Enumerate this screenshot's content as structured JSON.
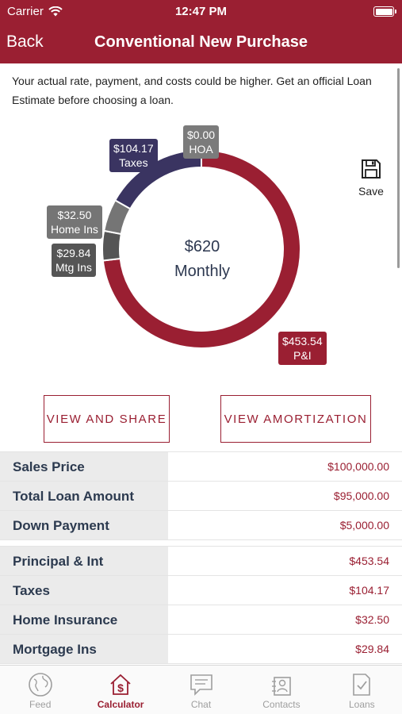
{
  "status_bar": {
    "carrier": "Carrier",
    "time": "12:47 PM"
  },
  "nav": {
    "back_label": "Back",
    "title": "Conventional New Purchase"
  },
  "disclaimer": "Your actual rate, payment, and costs could be higher. Get an official Loan Estimate before choosing a loan.",
  "chart_data": {
    "type": "pie",
    "variant": "donut",
    "center_amount": "$620",
    "center_label": "Monthly",
    "slices": [
      {
        "name": "P&I",
        "value": 453.54,
        "label": "$453.54",
        "color": "#9a1f32"
      },
      {
        "name": "Mtg Ins",
        "value": 29.84,
        "label": "$29.84",
        "color": "#555555"
      },
      {
        "name": "Home Ins",
        "value": 32.5,
        "label": "$32.50",
        "color": "#757575"
      },
      {
        "name": "Taxes",
        "value": 104.17,
        "label": "$104.17",
        "color": "#3a3461"
      },
      {
        "name": "HOA",
        "value": 0.0,
        "label": "$0.00",
        "color": "#7b7b7b"
      }
    ]
  },
  "save": {
    "label": "Save",
    "icon": "floppy-disk-icon"
  },
  "buttons": {
    "share": "VIEW AND SHARE",
    "amortization": "VIEW AMORTIZATION"
  },
  "loan_table": [
    {
      "label": "Sales Price",
      "value": "$100,000.00"
    },
    {
      "label": "Total Loan Amount",
      "value": "$95,000.00"
    },
    {
      "label": "Down Payment",
      "value": "$5,000.00"
    }
  ],
  "payment_table": [
    {
      "label": "Principal & Int",
      "value": "$453.54"
    },
    {
      "label": "Taxes",
      "value": "$104.17"
    },
    {
      "label": "Home Insurance",
      "value": "$32.50"
    },
    {
      "label": "Mortgage Ins",
      "value": "$29.84"
    }
  ],
  "tabs": [
    {
      "label": "Feed",
      "icon": "globe-icon",
      "active": false
    },
    {
      "label": "Calculator",
      "icon": "house-dollar-icon",
      "active": true
    },
    {
      "label": "Chat",
      "icon": "chat-bubble-icon",
      "active": false
    },
    {
      "label": "Contacts",
      "icon": "contacts-icon",
      "active": false
    },
    {
      "label": "Loans",
      "icon": "document-check-icon",
      "active": false
    }
  ],
  "colors": {
    "brand": "#9a1f32",
    "text_dark": "#2c3a4f"
  }
}
